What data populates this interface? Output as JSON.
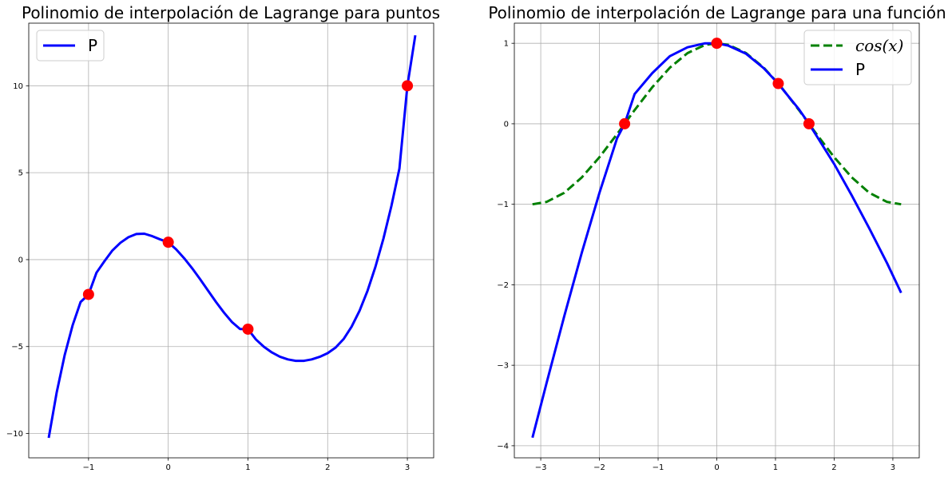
{
  "chart_data": [
    {
      "type": "line",
      "title": "Polinomio de interpolación de Lagrange para puntos",
      "xlabel": "",
      "ylabel": "",
      "xlim": [
        -1.75,
        3.33
      ],
      "ylim": [
        -11.4,
        13.6
      ],
      "xticks": [
        -1,
        0,
        1,
        2,
        3
      ],
      "xtick_labels": [
        "−1",
        "0",
        "1",
        "2",
        "3"
      ],
      "yticks": [
        -10,
        -5,
        0,
        5,
        10
      ],
      "ytick_labels": [
        "−10",
        "−5",
        "0",
        "5",
        "10"
      ],
      "grid": true,
      "legend": "upper left",
      "points": {
        "x": [
          -1,
          0,
          1,
          3
        ],
        "y": [
          -2,
          1,
          -4,
          10
        ],
        "color": "#ff0000"
      },
      "series": [
        {
          "name": "P",
          "style": "solid",
          "color": "#0000ff",
          "x": [
            -1.5,
            -1.4,
            -1.3,
            -1.2,
            -1.1,
            -1.0,
            -0.9,
            -0.8,
            -0.7,
            -0.6,
            -0.5,
            -0.4,
            -0.3,
            -0.2,
            -0.1,
            0.0,
            0.1,
            0.2,
            0.3,
            0.4,
            0.5,
            0.6,
            0.7,
            0.8,
            0.9,
            1.0,
            1.1,
            1.2,
            1.3,
            1.4,
            1.5,
            1.6,
            1.7,
            1.8,
            1.9,
            2.0,
            2.1,
            2.2,
            2.3,
            2.4,
            2.5,
            2.6,
            2.7,
            2.8,
            2.9,
            3.0,
            3.1
          ],
          "y": [
            -10.25,
            -7.66,
            -5.51,
            -3.78,
            -2.44,
            -2.0,
            -0.75,
            -0.09,
            0.53,
            0.97,
            1.29,
            1.47,
            1.49,
            1.35,
            1.16,
            1.0,
            0.59,
            0.08,
            -0.5,
            -1.13,
            -1.79,
            -2.44,
            -3.05,
            -3.59,
            -3.99,
            -4.0,
            -4.59,
            -5.01,
            -5.34,
            -5.58,
            -5.74,
            -5.82,
            -5.82,
            -5.74,
            -5.59,
            -5.38,
            -5.06,
            -4.57,
            -3.86,
            -2.94,
            -1.79,
            -0.41,
            1.21,
            3.09,
            5.23,
            10.0,
            12.9
          ]
        }
      ]
    },
    {
      "type": "line",
      "title": "Polinomio de interpolación de Lagrange para una función",
      "xlabel": "",
      "ylabel": "",
      "xlim": [
        -3.45,
        3.45
      ],
      "ylim": [
        -4.15,
        1.25
      ],
      "xticks": [
        -3,
        -2,
        -1,
        0,
        1,
        2,
        3
      ],
      "xtick_labels": [
        "−3",
        "−2",
        "−1",
        "0",
        "1",
        "2",
        "3"
      ],
      "yticks": [
        -4,
        -3,
        -2,
        -1,
        0,
        1
      ],
      "ytick_labels": [
        "−4",
        "−3",
        "−2",
        "−1",
        "0",
        "1"
      ],
      "grid": true,
      "legend": "upper right",
      "points": {
        "x": [
          -1.5708,
          0.0,
          1.0472,
          1.5708
        ],
        "y": [
          0.0,
          1.0,
          0.5,
          0.0
        ],
        "color": "#ff0000"
      },
      "series": [
        {
          "name": "cos(x)",
          "legend_label": "cos(x)",
          "style": "dashed",
          "color": "#008000",
          "x": [
            -3.1416,
            -2.9,
            -2.6,
            -2.3,
            -2.0,
            -1.7,
            -1.5708,
            -1.4,
            -1.1,
            -0.8,
            -0.5,
            -0.2,
            0.0,
            0.2,
            0.5,
            0.8,
            1.0472,
            1.1,
            1.4,
            1.5708,
            1.7,
            2.0,
            2.3,
            2.6,
            2.9,
            3.1416
          ],
          "y": [
            -1.0,
            -0.971,
            -0.857,
            -0.666,
            -0.416,
            -0.129,
            0.0,
            0.17,
            0.454,
            0.697,
            0.878,
            0.98,
            1.0,
            0.98,
            0.878,
            0.697,
            0.5,
            0.454,
            0.17,
            0.0,
            -0.129,
            -0.416,
            -0.666,
            -0.857,
            -0.971,
            -1.0
          ]
        },
        {
          "name": "P",
          "style": "solid",
          "color": "#0000ff",
          "x": [
            -3.1416,
            -2.9,
            -2.6,
            -2.3,
            -2.0,
            -1.7,
            -1.5708,
            -1.4,
            -1.1,
            -0.8,
            -0.5,
            -0.2,
            0.0,
            0.2,
            0.5,
            0.8,
            1.0472,
            1.1,
            1.4,
            1.5708,
            1.7,
            2.0,
            2.3,
            2.6,
            2.9,
            3.1416
          ],
          "y": [
            -3.9,
            -3.22,
            -2.39,
            -1.6,
            -0.86,
            -0.18,
            0.0,
            0.37,
            0.63,
            0.84,
            0.95,
            1.0,
            1.0,
            0.97,
            0.87,
            0.69,
            0.5,
            0.45,
            0.18,
            0.0,
            -0.15,
            -0.5,
            -0.89,
            -1.3,
            -1.73,
            -2.1
          ]
        }
      ]
    }
  ]
}
